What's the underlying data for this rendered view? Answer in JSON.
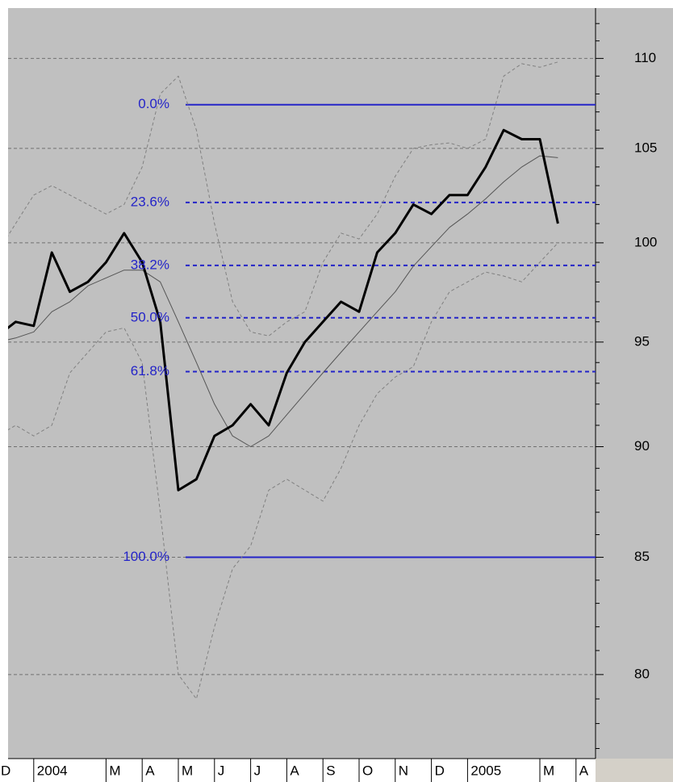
{
  "chart_data": {
    "type": "line",
    "log_scale": true,
    "grid": true,
    "categories": [
      "D",
      null,
      "2004",
      null,
      null,
      null,
      "M",
      null,
      "A",
      null,
      "M",
      null,
      "J",
      null,
      "J",
      null,
      "A",
      null,
      "S",
      null,
      "O",
      null,
      "N",
      null,
      "D",
      null,
      "2005",
      null,
      null,
      null,
      "M",
      null,
      "A",
      null
    ],
    "series": [
      {
        "color": "#000000",
        "values": [
          95.3,
          96,
          95.8,
          99.5,
          97.5,
          98,
          99,
          100.5,
          99,
          96,
          88,
          88.5,
          90.5,
          91,
          92,
          91,
          93.5,
          95,
          96,
          97,
          96.5,
          99.5,
          100.5,
          102,
          101.5,
          102.5,
          102.5,
          104,
          106,
          105.5,
          105.5,
          101,
          null,
          null
        ]
      },
      {
        "color": "#555555",
        "values": [
          95,
          95.2,
          95.5,
          96.5,
          97,
          97.8,
          98.2,
          98.6,
          98.6,
          98,
          96,
          94,
          92,
          90.5,
          90,
          90.5,
          91.5,
          92.5,
          93.5,
          94.5,
          95.5,
          96.5,
          97.5,
          98.8,
          99.8,
          100.8,
          101.5,
          102.3,
          103.2,
          104,
          104.6,
          104.5,
          null,
          null
        ]
      },
      {
        "color": "#808080",
        "dashed": true,
        "values": [
          99.5,
          101,
          102.5,
          103,
          102.5,
          102,
          101.5,
          102,
          104,
          108,
          109,
          106,
          101,
          97,
          95.5,
          95.3,
          96,
          96.5,
          99,
          100.5,
          100.2,
          101.5,
          103.5,
          105,
          105.2,
          105.3,
          105,
          105.5,
          109,
          109.7,
          109.5,
          109.8,
          null,
          null
        ]
      },
      {
        "color": "#808080",
        "dashed": true,
        "values": [
          90.5,
          91,
          90.5,
          91,
          93.5,
          94.5,
          95.5,
          95.7,
          94,
          87,
          80,
          79,
          82,
          84.5,
          85.5,
          88,
          88.5,
          88,
          87.5,
          89,
          91,
          92.5,
          93.3,
          93.8,
          96,
          97.5,
          98,
          98.5,
          98.3,
          98,
          99,
          100,
          null,
          null
        ]
      }
    ],
    "fib_levels": [
      {
        "label": "0.0%",
        "price": 107.4
      },
      {
        "label": "23.6%",
        "price": 102.11
      },
      {
        "label": "38.2%",
        "price": 98.84
      },
      {
        "label": "50.0%",
        "price": 96.2
      },
      {
        "label": "61.8%",
        "price": 93.56
      },
      {
        "label": "100.0%",
        "price": 85
      }
    ],
    "fib_color": "#2424c8",
    "ylim": [
      76.6,
      112.9
    ],
    "yticks": [
      80,
      85,
      90,
      95,
      100,
      105,
      110
    ],
    "minor_yticks": [
      77,
      78,
      79,
      81,
      82,
      83,
      84,
      86,
      87,
      88,
      89,
      91,
      92,
      93,
      94,
      96,
      97,
      98,
      99,
      101,
      102,
      103,
      104,
      106,
      107,
      108,
      109,
      111,
      112
    ]
  }
}
